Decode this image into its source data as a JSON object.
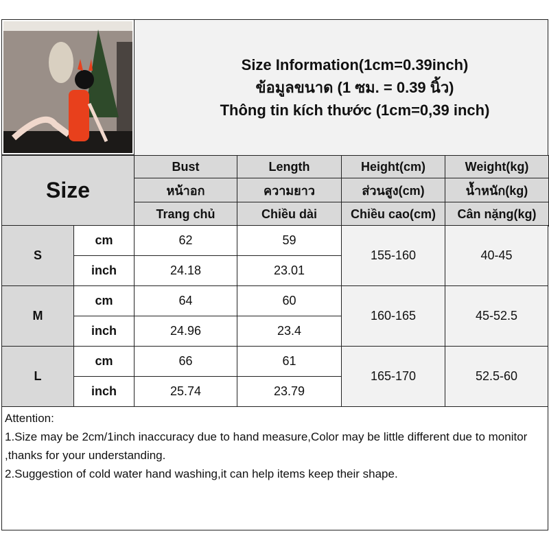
{
  "title": {
    "line1": "Size Information(1cm=0.39inch)",
    "line2": "ข้อมูลขนาด (1 ซม. = 0.39 นิ้ว)",
    "line3": "Thông tin kích thước (1cm=0,39 inch)"
  },
  "size_label": "Size",
  "headers": [
    [
      "Bust",
      "หน้าอก",
      "Trang chủ"
    ],
    [
      "Length",
      "ความยาว",
      "Chiều dài"
    ],
    [
      "Height(cm)",
      "ส่วนสูง(cm)",
      "Chiều cao(cm)"
    ],
    [
      "Weight(kg)",
      "น้ำหนัก(kg)",
      "Cân nặng(kg)"
    ]
  ],
  "units": {
    "cm": "cm",
    "inch": "inch"
  },
  "rows": [
    {
      "size": "S",
      "bust_cm": "62",
      "length_cm": "59",
      "bust_in": "24.18",
      "length_in": "23.01",
      "height": "155-160",
      "weight": "40-45"
    },
    {
      "size": "M",
      "bust_cm": "64",
      "length_cm": "60",
      "bust_in": "24.96",
      "length_in": "23.4",
      "height": "160-165",
      "weight": "45-52.5"
    },
    {
      "size": "L",
      "bust_cm": "66",
      "length_cm": "61",
      "bust_in": "25.74",
      "length_in": "23.79",
      "height": "165-170",
      "weight": "52.5-60"
    }
  ],
  "attention": {
    "heading": "Attention:",
    "line1": "1.Size may be 2cm/1inch inaccuracy due to hand measure,Color may be little different due to monitor ,thanks for your understanding.",
    "line2": "2.Suggestion of cold water hand washing,it can help items keep their shape."
  }
}
